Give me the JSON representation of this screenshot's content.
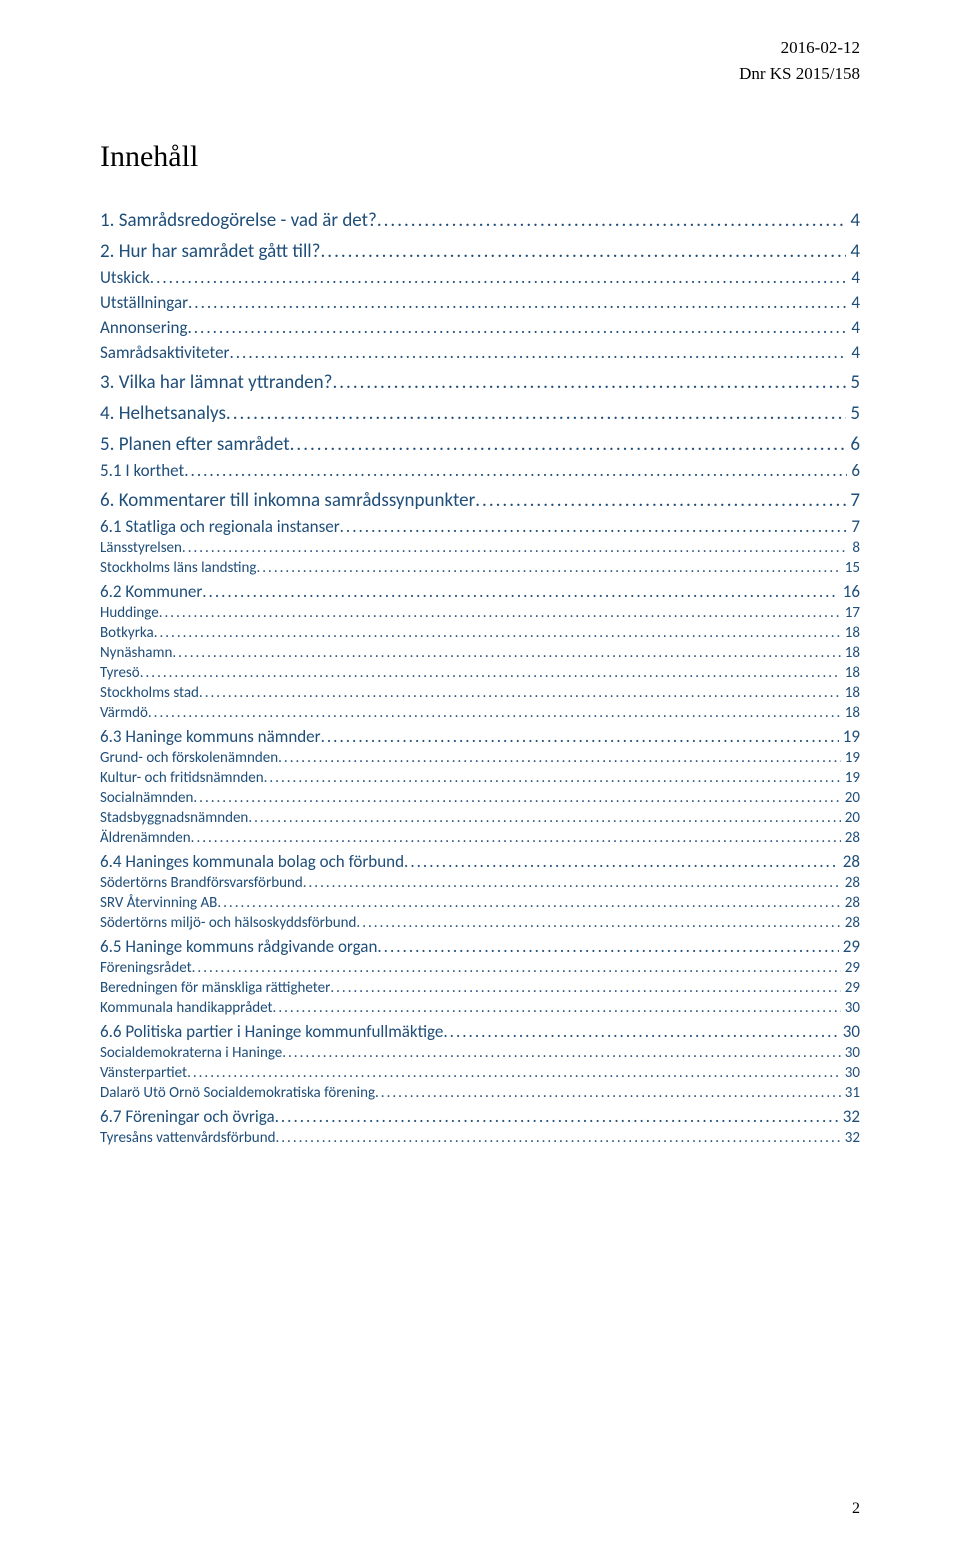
{
  "header": {
    "date": "2016-02-12",
    "ref": "Dnr KS 2015/158"
  },
  "title": "Innehåll",
  "colors": {
    "toc_link": "#1f4e79",
    "text": "#000000",
    "background": "#ffffff"
  },
  "typography": {
    "title_family": "Garamond",
    "title_size_pt": 22,
    "body_family": "Calibri",
    "lvl1_size_pt": 14,
    "lvl2_size_pt": 13,
    "lvl3_size_pt": 11
  },
  "toc": [
    {
      "level": 1,
      "label": "1. Samrådsredogörelse - vad är det?",
      "page": "4"
    },
    {
      "level": 1,
      "label": "2. Hur har samrådet gått till?",
      "page": "4"
    },
    {
      "level": 2,
      "label": "Utskick",
      "page": "4"
    },
    {
      "level": 2,
      "label": "Utställningar",
      "page": "4"
    },
    {
      "level": 2,
      "label": "Annonsering",
      "page": "4"
    },
    {
      "level": 2,
      "label": "Samrådsaktiviteter",
      "page": "4"
    },
    {
      "level": 1,
      "label": "3. Vilka har lämnat yttranden?",
      "page": "5"
    },
    {
      "level": 1,
      "label": "4. Helhetsanalys",
      "page": "5"
    },
    {
      "level": 1,
      "label": "5. Planen efter samrådet",
      "page": "6"
    },
    {
      "level": 2,
      "label": "5.1 I korthet",
      "page": "6"
    },
    {
      "level": 1,
      "label": "6. Kommentarer till inkomna samrådssynpunkter",
      "page": "7"
    },
    {
      "level": 2,
      "label": "6.1 Statliga och regionala instanser",
      "page": "7"
    },
    {
      "level": 3,
      "label": "Länsstyrelsen",
      "page": "8"
    },
    {
      "level": 3,
      "label": "Stockholms läns landsting",
      "page": "15"
    },
    {
      "level": 2,
      "label": "6.2 Kommuner",
      "page": "16"
    },
    {
      "level": 3,
      "label": "Huddinge",
      "page": "17"
    },
    {
      "level": 3,
      "label": "Botkyrka",
      "page": "18"
    },
    {
      "level": 3,
      "label": "Nynäshamn",
      "page": "18"
    },
    {
      "level": 3,
      "label": "Tyresö",
      "page": "18"
    },
    {
      "level": 3,
      "label": "Stockholms stad",
      "page": "18"
    },
    {
      "level": 3,
      "label": "Värmdö",
      "page": "18"
    },
    {
      "level": 2,
      "label": "6.3 Haninge kommuns nämnder",
      "page": "19"
    },
    {
      "level": 3,
      "label": "Grund- och förskolenämnden",
      "page": "19"
    },
    {
      "level": 3,
      "label": "Kultur- och fritidsnämnden",
      "page": "19"
    },
    {
      "level": 3,
      "label": "Socialnämnden",
      "page": "20"
    },
    {
      "level": 3,
      "label": "Stadsbyggnadsnämnden",
      "page": "20"
    },
    {
      "level": 3,
      "label": "Äldrenämnden",
      "page": "28"
    },
    {
      "level": 2,
      "label": "6.4 Haninges kommunala bolag och förbund",
      "page": "28"
    },
    {
      "level": 3,
      "label": "Södertörns Brandförsvarsförbund",
      "page": "28"
    },
    {
      "level": 3,
      "label": "SRV Återvinning AB",
      "page": "28"
    },
    {
      "level": 3,
      "label": "Södertörns miljö- och hälsoskyddsförbund",
      "page": "28"
    },
    {
      "level": 2,
      "label": "6.5 Haninge kommuns rådgivande organ",
      "page": "29"
    },
    {
      "level": 3,
      "label": "Föreningsrådet",
      "page": "29"
    },
    {
      "level": 3,
      "label": "Beredningen för mänskliga rättigheter",
      "page": "29"
    },
    {
      "level": 3,
      "label": "Kommunala handikapprådet",
      "page": "30"
    },
    {
      "level": 2,
      "label": "6.6 Politiska partier i Haninge kommunfullmäktige",
      "page": "30"
    },
    {
      "level": 3,
      "label": "Socialdemokraterna i Haninge",
      "page": "30"
    },
    {
      "level": 3,
      "label": "Vänsterpartiet",
      "page": "30"
    },
    {
      "level": 3,
      "label": "Dalarö Utö Ornö Socialdemokratiska förening",
      "page": "31"
    },
    {
      "level": 2,
      "label": "6.7 Föreningar och övriga",
      "page": "32"
    },
    {
      "level": 3,
      "label": "Tyresåns vattenvårdsförbund",
      "page": "32"
    }
  ],
  "footer": {
    "page_number": "2"
  }
}
